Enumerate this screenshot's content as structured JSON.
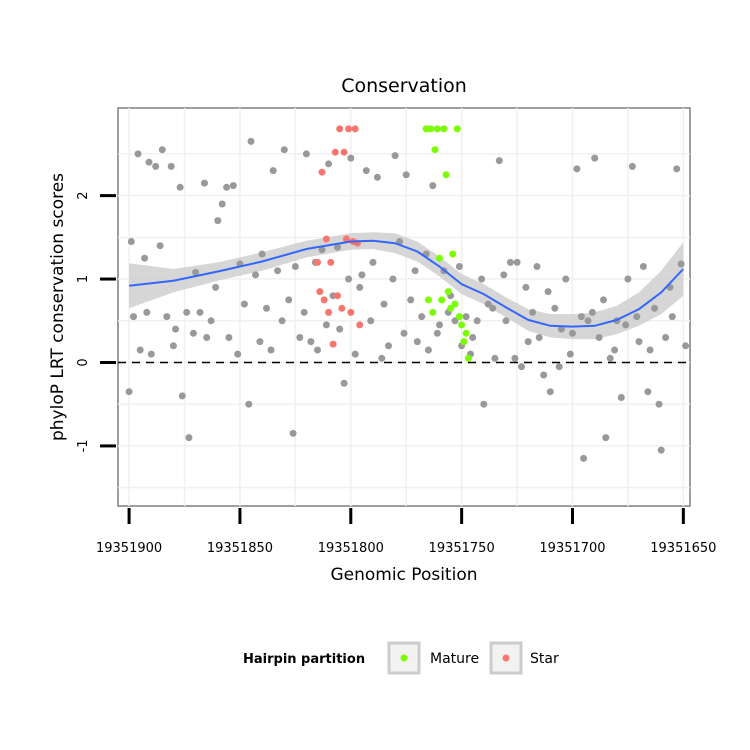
{
  "chart_data": {
    "type": "scatter",
    "title": "Conservation",
    "xlabel": "Genomic Position",
    "ylabel": "phyloP LRT conservation scores",
    "x_reversed": true,
    "xlim": [
      19351905,
      19351647
    ],
    "ylim": [
      -1.72,
      3.05
    ],
    "x_ticks": [
      19351900,
      19351850,
      19351800,
      19351750,
      19351700,
      19351650
    ],
    "y_ticks": [
      -1,
      0,
      1,
      2
    ],
    "reference_line": {
      "y": 0,
      "style": "dashed"
    },
    "grid": true,
    "legend": {
      "title": "Hairpin partition",
      "position": "bottom",
      "entries": [
        {
          "label": "Mature",
          "color": "#7CFC00"
        },
        {
          "label": "Star",
          "color": "#F8766D"
        }
      ]
    },
    "smooth": {
      "color": "#3366FF",
      "ribbon_color": "#cfcfcf",
      "x": [
        19351900,
        19351880,
        19351860,
        19351840,
        19351820,
        19351800,
        19351790,
        19351780,
        19351770,
        19351760,
        19351750,
        19351740,
        19351730,
        19351720,
        19351710,
        19351700,
        19351690,
        19351680,
        19351670,
        19351660,
        19351650
      ],
      "y": [
        0.92,
        0.98,
        1.09,
        1.21,
        1.36,
        1.45,
        1.46,
        1.43,
        1.33,
        1.15,
        0.94,
        0.82,
        0.66,
        0.51,
        0.44,
        0.43,
        0.44,
        0.51,
        0.64,
        0.84,
        1.12
      ],
      "lower": [
        0.65,
        0.84,
        0.98,
        1.1,
        1.26,
        1.35,
        1.36,
        1.31,
        1.21,
        1.03,
        0.82,
        0.7,
        0.54,
        0.38,
        0.3,
        0.28,
        0.28,
        0.34,
        0.44,
        0.58,
        0.8
      ],
      "upper": [
        1.19,
        1.12,
        1.2,
        1.32,
        1.46,
        1.55,
        1.56,
        1.55,
        1.45,
        1.27,
        1.06,
        0.94,
        0.78,
        0.64,
        0.58,
        0.58,
        0.6,
        0.68,
        0.84,
        1.1,
        1.44
      ]
    },
    "series": [
      {
        "name": "",
        "color": "#999999",
        "x": [
          19351900,
          19351899,
          19351898,
          19351896,
          19351895,
          19351893,
          19351892,
          19351891,
          19351890,
          19351888,
          19351886,
          19351885,
          19351883,
          19351881,
          19351880,
          19351879,
          19351877,
          19351876,
          19351874,
          19351873,
          19351871,
          19351870,
          19351868,
          19351866,
          19351865,
          19351863,
          19351861,
          19351860,
          19351858,
          19351856,
          19351855,
          19351853,
          19351851,
          19351850,
          19351848,
          19351846,
          19351845,
          19351843,
          19351841,
          19351840,
          19351838,
          19351836,
          19351835,
          19351833,
          19351831,
          19351830,
          19351828,
          19351826,
          19351825,
          19351823,
          19351821,
          19351820,
          19351818,
          19351816,
          19351815,
          19351813,
          19351811,
          19351810,
          19351808,
          19351806,
          19351805,
          19351803,
          19351801,
          19351800,
          19351798,
          19351796,
          19351795,
          19351793,
          19351791,
          19351790,
          19351788,
          19351786,
          19351785,
          19351783,
          19351781,
          19351780,
          19351778,
          19351776,
          19351775,
          19351773,
          19351771,
          19351770,
          19351768,
          19351766,
          19351765,
          19351763,
          19351761,
          19351760,
          19351758,
          19351756,
          19351755,
          19351753,
          19351751,
          19351750,
          19351748,
          19351746,
          19351745,
          19351743,
          19351741,
          19351740,
          19351738,
          19351736,
          19351735,
          19351733,
          19351731,
          19351730,
          19351728,
          19351726,
          19351725,
          19351723,
          19351721,
          19351720,
          19351718,
          19351716,
          19351715,
          19351713,
          19351711,
          19351710,
          19351708,
          19351706,
          19351705,
          19351703,
          19351701,
          19351700,
          19351698,
          19351696,
          19351695,
          19351693,
          19351691,
          19351690,
          19351688,
          19351686,
          19351685,
          19351683,
          19351681,
          19351680,
          19351678,
          19351676,
          19351675,
          19351673,
          19351671,
          19351670,
          19351668,
          19351666,
          19351665,
          19351663,
          19351661,
          19351660,
          19351658,
          19351656,
          19351655,
          19351653,
          19351651,
          19351649
        ],
        "y": [
          -0.35,
          1.45,
          0.55,
          2.5,
          0.15,
          1.25,
          0.6,
          2.4,
          0.1,
          2.35,
          1.4,
          2.55,
          0.55,
          2.35,
          0.2,
          0.4,
          2.1,
          -0.4,
          0.6,
          -0.9,
          0.35,
          1.08,
          0.6,
          2.15,
          0.3,
          0.5,
          0.9,
          1.7,
          1.9,
          2.1,
          0.3,
          2.12,
          0.1,
          1.18,
          0.7,
          -0.5,
          2.65,
          1.05,
          0.25,
          1.3,
          0.65,
          0.15,
          2.3,
          1.1,
          0.5,
          2.55,
          0.75,
          -0.85,
          1.15,
          0.3,
          0.6,
          2.5,
          0.25,
          1.2,
          0.15,
          1.35,
          0.45,
          2.38,
          0.8,
          1.38,
          0.4,
          -0.25,
          1.0,
          2.45,
          0.1,
          0.9,
          1.05,
          2.3,
          0.5,
          1.2,
          2.22,
          0.05,
          0.7,
          0.2,
          1.0,
          2.48,
          1.45,
          0.35,
          2.25,
          0.75,
          1.1,
          0.25,
          0.55,
          1.3,
          0.15,
          2.12,
          0.35,
          0.45,
          1.1,
          0.6,
          0.8,
          0.5,
          1.15,
          0.2,
          0.55,
          0.1,
          0.3,
          0.5,
          1.0,
          -0.5,
          0.7,
          0.65,
          0.05,
          2.42,
          1.05,
          0.5,
          1.2,
          0.05,
          1.2,
          -0.05,
          0.9,
          0.25,
          0.6,
          1.15,
          0.3,
          -0.15,
          0.85,
          -0.35,
          0.65,
          -0.05,
          0.4,
          1.0,
          0.1,
          0.35,
          2.32,
          0.55,
          -1.15,
          0.5,
          0.6,
          2.45,
          0.3,
          0.75,
          -0.9,
          0.05,
          0.15,
          0.5,
          -0.42,
          0.45,
          1.0,
          2.35,
          0.55,
          0.25,
          1.15,
          -0.35,
          0.15,
          0.65,
          -0.5,
          -1.05,
          0.3,
          0.9,
          0.55,
          2.32,
          1.18,
          0.2
        ],
        "labels": []
      },
      {
        "name": "Mature",
        "color": "#7CFC00",
        "x": [
          19351766,
          19351765,
          19351764,
          19351763,
          19351762,
          19351761,
          19351760,
          19351759,
          19351758,
          19351757,
          19351756,
          19351755,
          19351754,
          19351753,
          19351752,
          19351751,
          19351750,
          19351749,
          19351748,
          19351747
        ],
        "y": [
          2.8,
          0.75,
          2.8,
          0.6,
          2.55,
          2.8,
          1.25,
          0.75,
          2.8,
          2.25,
          0.85,
          0.65,
          1.3,
          0.7,
          2.8,
          0.55,
          0.45,
          0.25,
          0.35,
          0.05
        ],
        "labels": []
      },
      {
        "name": "Star",
        "color": "#F8766D",
        "x": [
          19351815,
          19351814,
          19351813,
          19351812,
          19351811,
          19351810,
          19351809,
          19351808,
          19351807,
          19351806,
          19351805,
          19351804,
          19351803,
          19351802,
          19351801,
          19351800,
          19351799,
          19351798,
          19351797,
          19351796
        ],
        "y": [
          1.2,
          0.85,
          2.28,
          0.75,
          1.48,
          0.6,
          1.2,
          0.22,
          2.52,
          0.8,
          2.8,
          0.65,
          2.52,
          1.48,
          2.8,
          0.6,
          1.45,
          2.8,
          1.43,
          0.45
        ],
        "labels": []
      }
    ]
  }
}
